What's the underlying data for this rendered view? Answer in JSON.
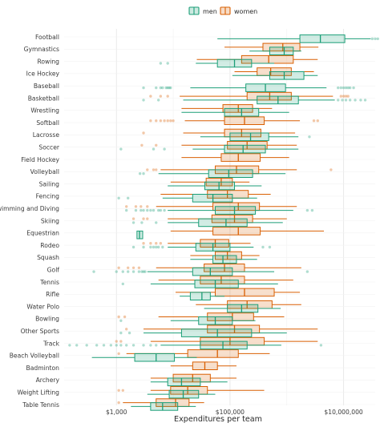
{
  "chart_data": {
    "type": "boxplot",
    "orientation": "horizontal",
    "xlabel": "Expenditures per team",
    "x_scale": "log10",
    "xlim": [
      120,
      36000000
    ],
    "x_ticks": [
      1000,
      100000,
      10000000
    ],
    "x_tick_labels": [
      "$1,000",
      "$100,000",
      "$10,000,000"
    ],
    "grid": true,
    "legend": {
      "position": "top",
      "entries": [
        {
          "label": "men",
          "color": "#1b9e77"
        },
        {
          "label": "women",
          "color": "#d95f02"
        }
      ]
    },
    "categories": [
      "Football",
      "Gymnastics",
      "Rowing",
      "Ice Hockey",
      "Baseball",
      "Basketball",
      "Wrestling",
      "Softball",
      "Lacrosse",
      "Soccer",
      "Field Hockey",
      "Volleyball",
      "Sailing",
      "Fencing",
      "Swimming and Diving",
      "Skiing",
      "Equestrian",
      "Rodeo",
      "Squash",
      "Golf",
      "Tennis",
      "Rifle",
      "Water Polo",
      "Bowling",
      "Other Sports",
      "Track",
      "Beach Volleyball",
      "Badminton",
      "Archery",
      "Weight Lifting",
      "Table Tennis"
    ],
    "series": [
      {
        "name": "men",
        "color": "#1b9e77",
        "boxes": [
          {
            "sport": "Football",
            "min": 60000,
            "q1": 1700000,
            "median": 3900000,
            "q3": 10500000,
            "max": 30000000,
            "outliers": [
              32000000,
              36000000,
              40000000
            ]
          },
          {
            "sport": "Gymnastics",
            "min": 220000,
            "q1": 500000,
            "median": 900000,
            "q3": 1300000,
            "max": 1800000,
            "outliers": []
          },
          {
            "sport": "Rowing",
            "min": 25000,
            "q1": 60000,
            "median": 120000,
            "q3": 240000,
            "max": 600000,
            "outliers": [
              6000,
              8000
            ]
          },
          {
            "sport": "Ice Hockey",
            "min": 110000,
            "q1": 500000,
            "median": 900000,
            "q3": 2000000,
            "max": 3500000,
            "outliers": []
          },
          {
            "sport": "Baseball",
            "min": 20000,
            "q1": 190000,
            "median": 420000,
            "q3": 950000,
            "max": 5000000,
            "outliers": [
              3000,
              5000,
              6000,
              6500,
              7500,
              8000,
              8500,
              9000,
              8000000,
              9000000,
              10000000,
              11000000,
              12000000,
              13000000,
              15000000
            ]
          },
          {
            "sport": "Basketball",
            "min": 15000,
            "q1": 300000,
            "median": 700000,
            "q3": 1600000,
            "max": 7000000,
            "outliers": [
              3000,
              5500,
              8000000,
              9500000,
              11000000,
              13000000,
              16000000,
              20000000,
              24000000
            ]
          },
          {
            "sport": "Wrestling",
            "min": 14000,
            "q1": 80000,
            "median": 160000,
            "q3": 320000,
            "max": 1100000,
            "outliers": []
          },
          {
            "sport": "Softball",
            "min": 0,
            "q1": 0,
            "median": 0,
            "q3": 0,
            "max": 0,
            "outliers": []
          },
          {
            "sport": "Lacrosse",
            "min": 30000,
            "q1": 100000,
            "median": 230000,
            "q3": 480000,
            "max": 1600000,
            "outliers": [
              2500000
            ]
          },
          {
            "sport": "Soccer",
            "min": 22000,
            "q1": 80000,
            "median": 170000,
            "q3": 420000,
            "max": 1600000,
            "outliers": [
              1200,
              4500,
              7000
            ]
          },
          {
            "sport": "Field Hockey",
            "min": 0,
            "q1": 0,
            "median": 0,
            "q3": 0,
            "max": 0,
            "outliers": []
          },
          {
            "sport": "Volleyball",
            "min": 5500,
            "q1": 42000,
            "median": 95000,
            "q3": 250000,
            "max": 950000,
            "outliers": [
              2600,
              3000
            ]
          },
          {
            "sport": "Sailing",
            "min": 8000,
            "q1": 36000,
            "median": 64000,
            "q3": 120000,
            "max": 360000,
            "outliers": []
          },
          {
            "sport": "Fencing",
            "min": 6500,
            "q1": 22000,
            "median": 50000,
            "q3": 110000,
            "max": 300000,
            "outliers": [
              1100,
              1600
            ]
          },
          {
            "sport": "Swimming and Diving",
            "min": 8000,
            "q1": 55000,
            "median": 120000,
            "q3": 280000,
            "max": 1300000,
            "outliers": [
              1500,
              2200,
              2700,
              3000,
              3500,
              4000,
              4500,
              5500,
              6000,
              7000,
              2300000,
              2800000
            ]
          },
          {
            "sport": "Skiing",
            "min": 8000,
            "q1": 28000,
            "median": 85000,
            "q3": 200000,
            "max": 850000,
            "outliers": [
              2000,
              2800,
              5000
            ]
          },
          {
            "sport": "Equestrian",
            "min": 2300,
            "q1": 2300,
            "median": 2550,
            "q3": 2900,
            "max": 2900,
            "outliers": []
          },
          {
            "sport": "Rodeo",
            "min": 8000,
            "q1": 25000,
            "median": 50000,
            "q3": 100000,
            "max": 260000,
            "outliers": [
              2000,
              3000,
              4000,
              4500,
              5000,
              5500,
              6500,
              380000,
              500000
            ]
          },
          {
            "sport": "Squash",
            "min": 20000,
            "q1": 50000,
            "median": 75000,
            "q3": 130000,
            "max": 300000,
            "outliers": []
          },
          {
            "sport": "Golf",
            "min": 3500,
            "q1": 22000,
            "median": 45000,
            "q3": 110000,
            "max": 600000,
            "outliers": [
              400,
              1000,
              1300,
              1600,
              2000,
              2500,
              2800,
              3000,
              3200,
              2300000
            ]
          },
          {
            "sport": "Tennis",
            "min": 4000,
            "q1": 24000,
            "median": 55000,
            "q3": 140000,
            "max": 700000,
            "outliers": [
              1300
            ]
          },
          {
            "sport": "Rifle",
            "min": 13000,
            "q1": 20000,
            "median": 32000,
            "q3": 45000,
            "max": 80000,
            "outliers": []
          },
          {
            "sport": "Water Polo",
            "min": 35000,
            "q1": 90000,
            "median": 160000,
            "q3": 310000,
            "max": 780000,
            "outliers": []
          },
          {
            "sport": "Bowling",
            "min": 9000,
            "q1": 28000,
            "median": 55000,
            "q3": 110000,
            "max": 280000,
            "outliers": [
              1200
            ]
          },
          {
            "sport": "Other Sports",
            "min": 3000,
            "q1": 14000,
            "median": 60000,
            "q3": 240000,
            "max": 1000000,
            "outliers": [
              1200,
              1700
            ]
          },
          {
            "sport": "Track",
            "min": 6000,
            "q1": 30000,
            "median": 75000,
            "q3": 200000,
            "max": 800000,
            "outliers": [
              150,
              200,
              300,
              450,
              600,
              800,
              1000,
              1200,
              1500,
              2000,
              3000,
              4000,
              5000,
              4000000
            ]
          },
          {
            "sport": "Beach Volleyball",
            "min": 370,
            "q1": 2100,
            "median": 5000,
            "q3": 10500,
            "max": 26000,
            "outliers": []
          },
          {
            "sport": "Badminton",
            "min": 0,
            "q1": 0,
            "median": 0,
            "q3": 0,
            "max": 0,
            "outliers": []
          },
          {
            "sport": "Archery",
            "min": 4000,
            "q1": 8000,
            "median": 14000,
            "q3": 30000,
            "max": 90000,
            "outliers": []
          },
          {
            "sport": "Weight Lifting",
            "min": 3500,
            "q1": 8500,
            "median": 15000,
            "q3": 28000,
            "max": 55000,
            "outliers": []
          },
          {
            "sport": "Table Tennis",
            "min": 1800,
            "q1": 4000,
            "median": 6500,
            "q3": 12000,
            "max": 25000,
            "outliers": []
          }
        ]
      },
      {
        "name": "women",
        "color": "#d95f02",
        "boxes": [
          {
            "sport": "Football",
            "min": 0,
            "q1": 0,
            "median": 0,
            "q3": 0,
            "max": 0,
            "outliers": []
          },
          {
            "sport": "Gymnastics",
            "min": 80000,
            "q1": 380000,
            "median": 850000,
            "q3": 1700000,
            "max": 3600000,
            "outliers": []
          },
          {
            "sport": "Rowing",
            "min": 26000,
            "q1": 160000,
            "median": 480000,
            "q3": 1300000,
            "max": 3500000,
            "outliers": []
          },
          {
            "sport": "Ice Hockey",
            "min": 120000,
            "q1": 300000,
            "median": 520000,
            "q3": 1200000,
            "max": 3000000,
            "outliers": []
          },
          {
            "sport": "Baseball",
            "min": 0,
            "q1": 0,
            "median": 0,
            "q3": 0,
            "max": 0,
            "outliers": []
          },
          {
            "sport": "Basketball",
            "min": 13000,
            "q1": 200000,
            "median": 500000,
            "q3": 1200000,
            "max": 6500000,
            "outliers": [
              4000,
              6000,
              8000,
              9000000,
              10000000,
              11000000,
              12000000
            ]
          },
          {
            "sport": "Wrestling",
            "min": 14000,
            "q1": 75000,
            "median": 140000,
            "q3": 250000,
            "max": 550000,
            "outliers": []
          },
          {
            "sport": "Softball",
            "min": 16000,
            "q1": 80000,
            "median": 180000,
            "q3": 400000,
            "max": 1700000,
            "outliers": [
              4000,
              5000,
              6000,
              7000,
              8000,
              9000,
              10000,
              3000000,
              3500000
            ]
          },
          {
            "sport": "Lacrosse",
            "min": 15000,
            "q1": 80000,
            "median": 160000,
            "q3": 350000,
            "max": 1400000,
            "outliers": [
              3000
            ]
          },
          {
            "sport": "Soccer",
            "min": 14000,
            "q1": 90000,
            "median": 200000,
            "q3": 450000,
            "max": 1500000,
            "outliers": [
              2800,
              5000
            ]
          },
          {
            "sport": "Field Hockey",
            "min": 14000,
            "q1": 70000,
            "median": 140000,
            "q3": 340000,
            "max": 1100000,
            "outliers": []
          },
          {
            "sport": "Volleyball",
            "min": 6000,
            "q1": 55000,
            "median": 130000,
            "q3": 320000,
            "max": 1500000,
            "outliers": [
              3500,
              4500,
              5000,
              6000000
            ]
          },
          {
            "sport": "Sailing",
            "min": 9000,
            "q1": 38000,
            "median": 70000,
            "q3": 110000,
            "max": 220000,
            "outliers": []
          },
          {
            "sport": "Fencing",
            "min": 6000,
            "q1": 40000,
            "median": 90000,
            "q3": 210000,
            "max": 520000,
            "outliers": []
          },
          {
            "sport": "Swimming and Diving",
            "min": 5000,
            "q1": 50000,
            "median": 140000,
            "q3": 330000,
            "max": 1500000,
            "outliers": [
              1500,
              2200,
              2700,
              3500
            ]
          },
          {
            "sport": "Skiing",
            "min": 8000,
            "q1": 48000,
            "median": 120000,
            "q3": 250000,
            "max": 1000000,
            "outliers": [
              2000,
              3000,
              3500
            ]
          },
          {
            "sport": "Equestrian",
            "min": 9000,
            "q1": 50000,
            "median": 140000,
            "q3": 340000,
            "max": 4500000,
            "outliers": []
          },
          {
            "sport": "Rodeo",
            "min": 8000,
            "q1": 30000,
            "median": 55000,
            "q3": 95000,
            "max": 230000,
            "outliers": [
              3000,
              4000,
              5000,
              6000
            ]
          },
          {
            "sport": "Squash",
            "min": 20000,
            "q1": 55000,
            "median": 90000,
            "q3": 160000,
            "max": 330000,
            "outliers": []
          },
          {
            "sport": "Golf",
            "min": 5000,
            "q1": 35000,
            "median": 80000,
            "q3": 180000,
            "max": 1800000,
            "outliers": [
              1100,
              1600,
              2000,
              2500
            ]
          },
          {
            "sport": "Tennis",
            "min": 5500,
            "q1": 30000,
            "median": 70000,
            "q3": 180000,
            "max": 1300000,
            "outliers": []
          },
          {
            "sport": "Rifle",
            "min": 11000,
            "q1": 55000,
            "median": 180000,
            "q3": 600000,
            "max": 1700000,
            "outliers": []
          },
          {
            "sport": "Water Polo",
            "min": 25000,
            "q1": 90000,
            "median": 200000,
            "q3": 550000,
            "max": 1800000,
            "outliers": []
          },
          {
            "sport": "Bowling",
            "min": 5500,
            "q1": 40000,
            "median": 110000,
            "q3": 260000,
            "max": 900000,
            "outliers": [
              1100,
              1400
            ]
          },
          {
            "sport": "Other Sports",
            "min": 3000,
            "q1": 40000,
            "median": 120000,
            "q3": 330000,
            "max": 3500000,
            "outliers": [
              1500
            ]
          },
          {
            "sport": "Track",
            "min": 4000,
            "q1": 30000,
            "median": 100000,
            "q3": 400000,
            "max": 3500000,
            "outliers": [
              1000,
              1200
            ]
          },
          {
            "sport": "Beach Volleyball",
            "min": 1500,
            "q1": 18000,
            "median": 60000,
            "q3": 140000,
            "max": 500000,
            "outliers": [
              1100
            ]
          },
          {
            "sport": "Badminton",
            "min": 9000,
            "q1": 22000,
            "median": 36000,
            "q3": 60000,
            "max": 130000,
            "outliers": []
          },
          {
            "sport": "Archery",
            "min": 4000,
            "q1": 10000,
            "median": 22000,
            "q3": 45000,
            "max": 130000,
            "outliers": []
          },
          {
            "sport": "Weight Lifting",
            "min": 4000,
            "q1": 9000,
            "median": 18000,
            "q3": 40000,
            "max": 400000,
            "outliers": [
              1100,
              1300
            ]
          },
          {
            "sport": "Table Tennis",
            "min": 1300,
            "q1": 5000,
            "median": 11000,
            "q3": 19000,
            "max": 35000,
            "outliers": [
              1100
            ]
          }
        ]
      }
    ]
  }
}
